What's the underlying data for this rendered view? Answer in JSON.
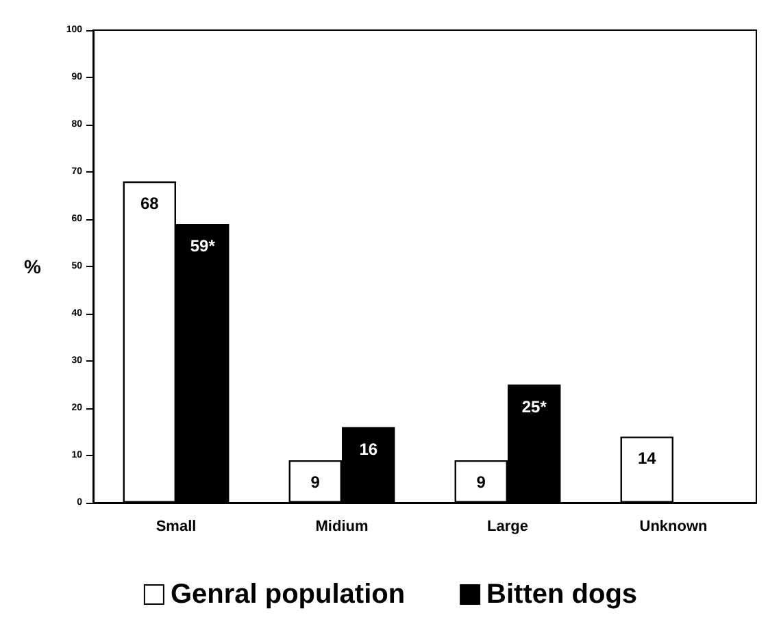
{
  "chart_data": {
    "type": "bar",
    "ylabel": "%",
    "categories": [
      "Small",
      "Midium",
      "Large",
      "Unknown"
    ],
    "series": [
      {
        "name": "Genral population",
        "color": "#ffffff",
        "values": [
          68,
          9,
          9,
          14
        ],
        "value_labels": [
          "68",
          "9",
          "9",
          "14"
        ]
      },
      {
        "name": "Bitten dogs",
        "color": "#000000",
        "values": [
          59,
          16,
          25,
          null
        ],
        "value_labels": [
          "59*",
          "16",
          "25*",
          null
        ]
      }
    ],
    "ylim": [
      0,
      100
    ],
    "yticks": [
      0,
      10,
      20,
      30,
      40,
      50,
      60,
      70,
      80,
      90,
      100
    ],
    "grid": false,
    "legend": "bottom"
  }
}
